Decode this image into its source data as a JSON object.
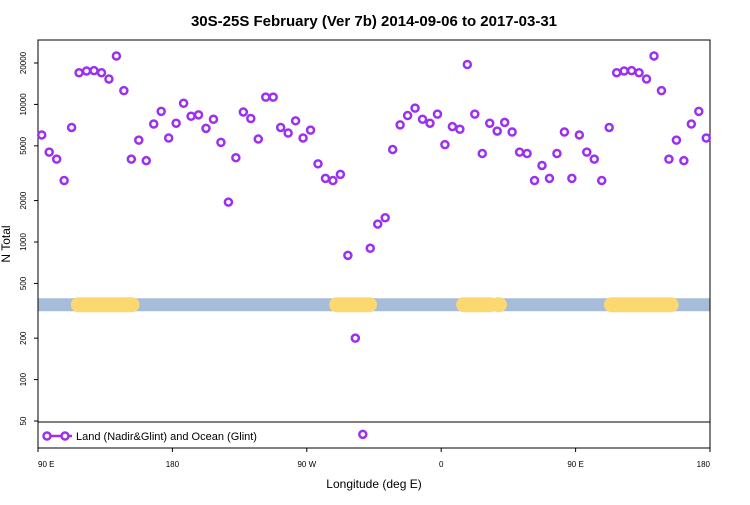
{
  "chart_data": {
    "type": "scatter",
    "title": "30S-25S February (Ver 7b)   2014-09-06 to 2017-03-31",
    "xlabel": "Longitude (deg E)",
    "ylabel": "N Total",
    "x_axis": {
      "range": [
        90,
        540
      ],
      "ticks": [
        90,
        180,
        270,
        360,
        450,
        540
      ],
      "tick_labels": [
        "90 E",
        "180",
        "90 W",
        "0",
        "90 E",
        "180"
      ]
    },
    "y_axis": {
      "scale": "log",
      "range": [
        40,
        35000
      ],
      "ticks": [
        50,
        100,
        200,
        500,
        1000,
        2000,
        5000,
        10000,
        20000
      ],
      "tick_labels": [
        "50",
        "100",
        "200",
        "500",
        "1000",
        "2000",
        "5000",
        "10000",
        "20000"
      ]
    },
    "land_mask": {
      "y_value": 350,
      "ocean_color": "#a6bcd9",
      "land_color": "#fbd970",
      "land_segments": [
        [
          117,
          153
        ],
        [
          290,
          312
        ],
        [
          375,
          393
        ],
        [
          398,
          399
        ],
        [
          474,
          514
        ]
      ]
    },
    "series": [
      {
        "name": "Land (Nadir&Glint) and Ocean (Glint)",
        "color": "#9b30f0",
        "marker": "open-circle",
        "points": [
          [
            92.5,
            6000
          ],
          [
            97.5,
            4500
          ],
          [
            102.5,
            4000
          ],
          [
            107.5,
            2800
          ],
          [
            112.5,
            6800
          ],
          [
            117.5,
            17000
          ],
          [
            122.5,
            17500
          ],
          [
            127.5,
            17600
          ],
          [
            132.5,
            17000
          ],
          [
            137.5,
            15300
          ],
          [
            142.5,
            22500
          ],
          [
            147.5,
            12600
          ],
          [
            152.5,
            4000
          ],
          [
            157.5,
            5500
          ],
          [
            162.5,
            3900
          ],
          [
            167.5,
            7200
          ],
          [
            172.5,
            8900
          ],
          [
            177.5,
            5700
          ],
          [
            182.5,
            7300
          ],
          [
            187.5,
            10200
          ],
          [
            192.5,
            8200
          ],
          [
            197.5,
            8400
          ],
          [
            202.5,
            6700
          ],
          [
            207.5,
            7800
          ],
          [
            212.5,
            5300
          ],
          [
            217.5,
            1950
          ],
          [
            222.5,
            4100
          ],
          [
            227.5,
            8800
          ],
          [
            232.5,
            7900
          ],
          [
            237.5,
            5600
          ],
          [
            242.5,
            11300
          ],
          [
            247.5,
            11300
          ],
          [
            252.5,
            6800
          ],
          [
            257.5,
            6200
          ],
          [
            262.5,
            7600
          ],
          [
            267.5,
            5700
          ],
          [
            272.5,
            6500
          ],
          [
            277.5,
            3700
          ],
          [
            282.5,
            2900
          ],
          [
            287.5,
            2800
          ],
          [
            292.5,
            3100
          ],
          [
            297.5,
            800
          ],
          [
            302.5,
            200
          ],
          [
            307.5,
            40
          ],
          [
            312.5,
            900
          ],
          [
            317.5,
            1350
          ],
          [
            322.5,
            1500
          ],
          [
            327.5,
            4700
          ],
          [
            332.5,
            7100
          ],
          [
            337.5,
            8300
          ],
          [
            342.5,
            9400
          ],
          [
            347.5,
            7800
          ],
          [
            352.5,
            7300
          ],
          [
            357.5,
            8500
          ],
          [
            362.5,
            5100
          ],
          [
            367.5,
            6900
          ],
          [
            372.5,
            6600
          ],
          [
            377.5,
            19500
          ],
          [
            382.5,
            8500
          ],
          [
            387.5,
            4400
          ],
          [
            392.5,
            7300
          ],
          [
            397.5,
            6400
          ],
          [
            402.5,
            7400
          ],
          [
            407.5,
            6300
          ],
          [
            412.5,
            4500
          ],
          [
            417.5,
            4400
          ],
          [
            422.5,
            2800
          ],
          [
            427.5,
            3600
          ],
          [
            432.5,
            2900
          ],
          [
            437.5,
            4400
          ],
          [
            442.5,
            6300
          ],
          [
            447.5,
            2900
          ],
          [
            452.5,
            6000
          ],
          [
            457.5,
            4500
          ],
          [
            462.5,
            4000
          ],
          [
            467.5,
            2800
          ],
          [
            472.5,
            6800
          ],
          [
            477.5,
            17000
          ],
          [
            482.5,
            17500
          ],
          [
            487.5,
            17600
          ],
          [
            492.5,
            17000
          ],
          [
            497.5,
            15300
          ],
          [
            502.5,
            22500
          ],
          [
            507.5,
            12600
          ],
          [
            512.5,
            4000
          ],
          [
            517.5,
            5500
          ],
          [
            522.5,
            3900
          ],
          [
            527.5,
            7200
          ],
          [
            532.5,
            8900
          ],
          [
            537.5,
            5700
          ]
        ]
      }
    ],
    "legend": {
      "position": "bottom-left",
      "entries": [
        "Land (Nadir&Glint) and Ocean (Glint)"
      ]
    }
  }
}
